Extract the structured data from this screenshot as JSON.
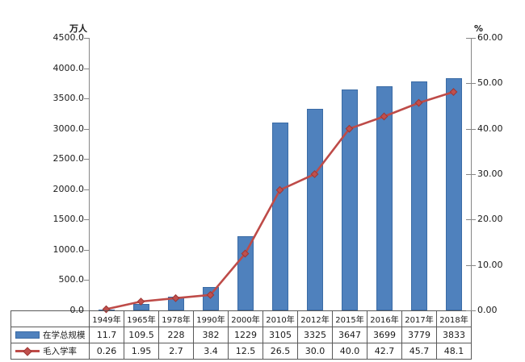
{
  "chart_data": {
    "type": "bar+line combo with data table",
    "title": "",
    "categories": [
      "1949年",
      "1965年",
      "1978年",
      "1990年",
      "2000年",
      "2010年",
      "2012年",
      "2015年",
      "2016年",
      "2017年",
      "2018年"
    ],
    "series": [
      {
        "name": "在学总规模",
        "type": "bar",
        "axis": "left",
        "values": [
          11.7,
          109.5,
          228,
          382,
          1229,
          3105,
          3325,
          3647,
          3699,
          3779,
          3833
        ],
        "display": [
          "11.7",
          "109.5",
          "228",
          "382",
          "1229",
          "3105",
          "3325",
          "3647",
          "3699",
          "3779",
          "3833"
        ]
      },
      {
        "name": "毛入学率",
        "type": "line",
        "axis": "right",
        "marker": "diamond",
        "values": [
          0.26,
          1.95,
          2.7,
          3.4,
          12.5,
          26.5,
          30.0,
          40.0,
          42.7,
          45.7,
          48.1
        ],
        "display": [
          "0.26",
          "1.95",
          "2.7",
          "3.4",
          "12.5",
          "26.5",
          "30.0",
          "40.0",
          "42.7",
          "45.7",
          "48.1"
        ]
      }
    ],
    "left_axis": {
      "unit": "万人",
      "min": 0,
      "max": 4500,
      "step": 500,
      "tick_labels": [
        "0.0",
        "500.0",
        "1000.0",
        "1500.0",
        "2000.0",
        "2500.0",
        "3000.0",
        "3500.0",
        "4000.0",
        "4500.0"
      ]
    },
    "right_axis": {
      "unit": "%",
      "min": 0,
      "max": 60,
      "step": 10,
      "tick_labels": [
        "0.00",
        "10.00",
        "20.00",
        "30.00",
        "40.00",
        "50.00",
        "60.00"
      ]
    },
    "grid": false,
    "legend_position": "table-left",
    "colors": {
      "bar_fill": "#4F81BD",
      "bar_border": "#3A6BA5",
      "line": "#BE4B48",
      "marker_fill": "#C0504D",
      "marker_border": "#9E3735",
      "axis": "#868686",
      "table_border": "#595959"
    }
  }
}
